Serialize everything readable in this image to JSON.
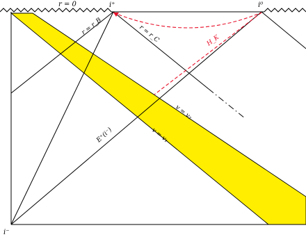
{
  "colors": {
    "line": "#000000",
    "band_fill": "#ffee00",
    "horizon_dash": "#e8102a"
  },
  "labels": {
    "singularity": "r = 0",
    "i_plus": "i⁺",
    "i_zero": "i⁰",
    "i_minus": "i⁻",
    "r_b": "r = r_B",
    "r_c": "r = r_C",
    "h_k": "H_K",
    "v_v2": "v = v₂",
    "v_v1": "v = v₁",
    "event_horizon": "E⁺(i⁻)"
  }
}
